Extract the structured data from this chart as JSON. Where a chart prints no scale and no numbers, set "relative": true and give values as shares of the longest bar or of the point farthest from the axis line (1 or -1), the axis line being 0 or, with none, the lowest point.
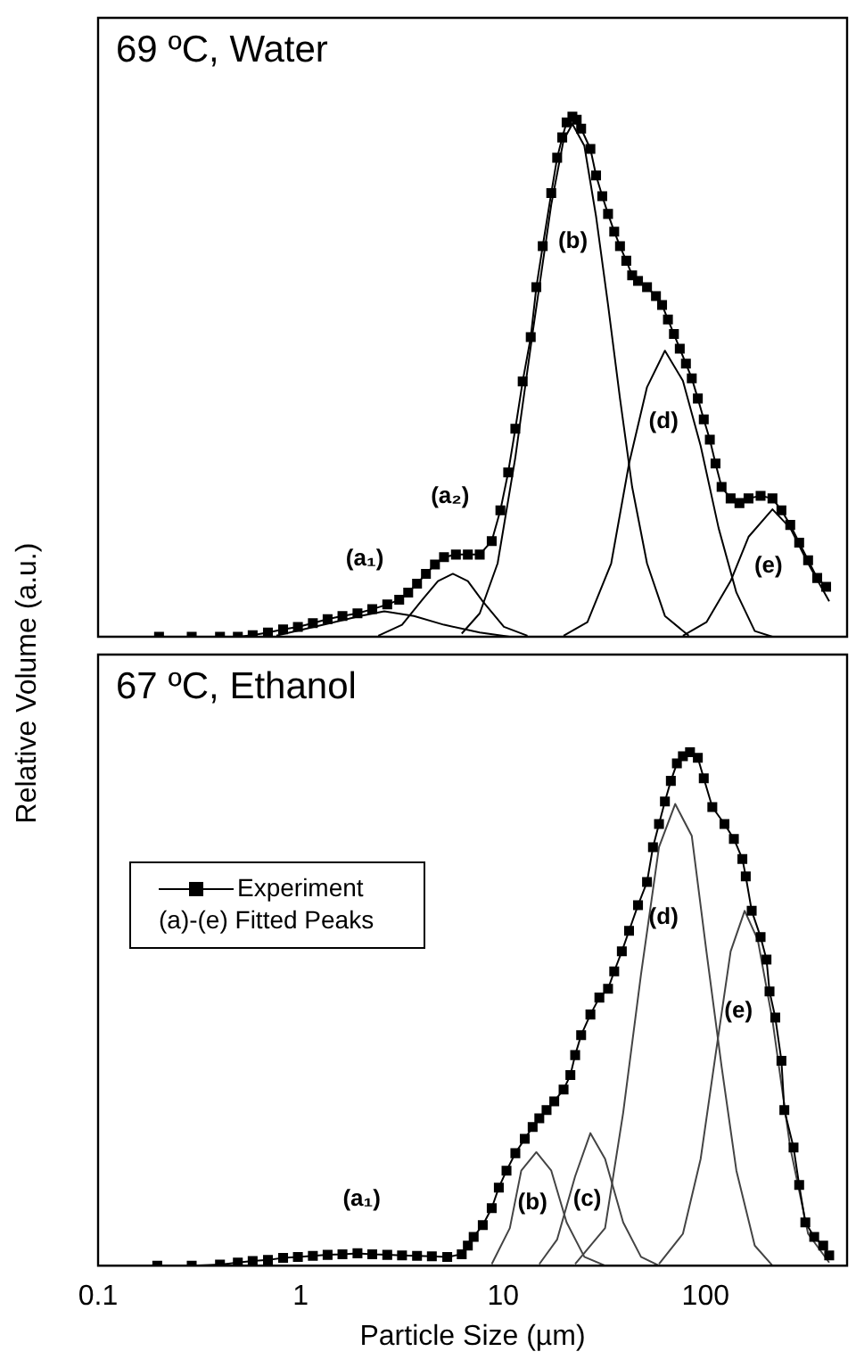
{
  "chart_data": [
    {
      "type": "line",
      "title": "69 ºC, Water",
      "ylabel": "Relative Volume (a.u.)",
      "relative": true,
      "log": "x",
      "xlim": [
        0.1,
        500
      ],
      "xticks": [
        0.1,
        1,
        10,
        100
      ],
      "tick_labels": false,
      "grid": false,
      "legend": false,
      "series": [
        {
          "color": "#000000",
          "marker": "square",
          "x": [
            0.2,
            0.29,
            0.4,
            0.49,
            0.58,
            0.69,
            0.82,
            0.97,
            1.15,
            1.36,
            1.61,
            1.91,
            2.26,
            2.68,
            3.07,
            3.4,
            3.76,
            4.16,
            4.61,
            5.11,
            5.85,
            6.7,
            7.67,
            8.79,
            9.7,
            10.6,
            11.5,
            12.5,
            13.7,
            14.6,
            15.7,
            17.3,
            18.5,
            19.6,
            20.6,
            22,
            23.1,
            24.3,
            27,
            28.8,
            30.9,
            33,
            35.4,
            37.8,
            40.6,
            43.4,
            46.4,
            51.4,
            56.9,
            61,
            65.2,
            69.8,
            74.6,
            80,
            85.5,
            91.6,
            98,
            105,
            112,
            120,
            133,
            147,
            163,
            187,
            214,
            237,
            262,
            290,
            321,
            356,
            394
          ],
          "values": [
            0,
            0,
            0,
            0,
            0.003,
            0.008,
            0.014,
            0.019,
            0.026,
            0.034,
            0.04,
            0.045,
            0.053,
            0.062,
            0.071,
            0.085,
            0.102,
            0.121,
            0.139,
            0.153,
            0.158,
            0.158,
            0.158,
            0.184,
            0.243,
            0.316,
            0.4,
            0.491,
            0.576,
            0.672,
            0.751,
            0.853,
            0.921,
            0.96,
            0.989,
            1,
            0.994,
            0.977,
            0.938,
            0.887,
            0.847,
            0.813,
            0.779,
            0.751,
            0.723,
            0.695,
            0.684,
            0.672,
            0.655,
            0.638,
            0.61,
            0.582,
            0.554,
            0.525,
            0.497,
            0.458,
            0.418,
            0.379,
            0.333,
            0.288,
            0.266,
            0.257,
            0.266,
            0.271,
            0.266,
            0.243,
            0.215,
            0.181,
            0.147,
            0.113,
            0.096
          ]
        },
        {
          "color": "#000000",
          "marker": "none",
          "x": [
            0.76,
            1.4,
            1.97,
            2.59,
            3.63,
            5.11,
            7.67,
            10.8
          ],
          "values": [
            0.002,
            0.026,
            0.04,
            0.049,
            0.04,
            0.023,
            0.008,
            0
          ]
        },
        {
          "color": "#000000",
          "marker": "none",
          "x": [
            2.42,
            3.17,
            4.03,
            4.77,
            5.65,
            6.7,
            7.94,
            10.1,
            13.2
          ],
          "values": [
            0.002,
            0.023,
            0.073,
            0.107,
            0.121,
            0.107,
            0.068,
            0.019,
            0.002
          ]
        },
        {
          "color": "#000000",
          "marker": "none",
          "x": [
            6.25,
            7.67,
            9.4,
            11.5,
            14.1,
            17.3,
            19.9,
            22,
            25.2,
            28.8,
            33,
            37.8,
            43.4,
            51.4,
            63,
            82.6
          ],
          "values": [
            0.006,
            0.045,
            0.141,
            0.345,
            0.593,
            0.831,
            0.955,
            0.986,
            0.944,
            0.808,
            0.638,
            0.458,
            0.288,
            0.141,
            0.04,
            0.002
          ]
        },
        {
          "color": "#000000",
          "marker": "none",
          "x": [
            19.9,
            26.1,
            34.2,
            41.9,
            51.4,
            63,
            77.3,
            94.6,
            116,
            142,
            175,
            214
          ],
          "values": [
            0.002,
            0.028,
            0.141,
            0.333,
            0.48,
            0.55,
            0.492,
            0.367,
            0.209,
            0.085,
            0.011,
            0
          ]
        },
        {
          "color": "#000000",
          "marker": "none",
          "x": [
            77.3,
            101,
            133,
            163,
            214,
            262,
            321,
            408
          ],
          "values": [
            0.002,
            0.028,
            0.107,
            0.192,
            0.245,
            0.209,
            0.141,
            0.068
          ]
        }
      ],
      "annotations": [
        "(a₁)",
        "(a₂)",
        "(b)",
        "(d)",
        "(e)"
      ]
    },
    {
      "type": "line",
      "title": "67 ºC, Ethanol",
      "xlabel": "Particle Size (µm)",
      "relative": true,
      "log": "x",
      "xlim": [
        0.1,
        500
      ],
      "xticks": [
        0.1,
        1,
        10,
        100
      ],
      "tick_labels": "x",
      "grid": false,
      "legend": "top left",
      "series": [
        {
          "name": "Experiment",
          "color": "#000000",
          "marker": "square",
          "x": [
            0.196,
            0.29,
            0.4,
            0.49,
            0.58,
            0.69,
            0.82,
            0.97,
            1.15,
            1.36,
            1.61,
            1.91,
            2.26,
            2.68,
            3.17,
            3.76,
            4.45,
            5.3,
            6.25,
            6.7,
            7.16,
            7.94,
            8.79,
            9.53,
            10.4,
            11.5,
            12.8,
            14,
            15.1,
            16.4,
            17.9,
            19.9,
            21.5,
            22.7,
            24.3,
            27,
            29.9,
            33,
            35.4,
            38.6,
            41.9,
            46.4,
            51.4,
            55,
            58.9,
            63,
            67.4,
            72.2,
            77.3,
            83.8,
            91.6,
            98,
            108,
            124,
            138,
            152,
            158,
            169,
            187,
            200,
            207,
            221,
            237,
            245,
            272,
            290,
            311,
            344,
            381,
            408
          ],
          "values": [
            0,
            0,
            0.002,
            0.006,
            0.009,
            0.011,
            0.015,
            0.017,
            0.019,
            0.021,
            0.022,
            0.024,
            0.022,
            0.021,
            0.02,
            0.019,
            0.018,
            0.017,
            0.022,
            0.039,
            0.056,
            0.079,
            0.112,
            0.152,
            0.185,
            0.219,
            0.247,
            0.27,
            0.287,
            0.303,
            0.32,
            0.343,
            0.371,
            0.41,
            0.449,
            0.489,
            0.522,
            0.539,
            0.573,
            0.612,
            0.652,
            0.702,
            0.747,
            0.815,
            0.86,
            0.904,
            0.944,
            0.978,
            0.992,
            1,
            0.989,
            0.949,
            0.893,
            0.86,
            0.831,
            0.792,
            0.758,
            0.691,
            0.64,
            0.596,
            0.534,
            0.483,
            0.399,
            0.303,
            0.23,
            0.157,
            0.084,
            0.056,
            0.039,
            0.02
          ]
        },
        {
          "color": "#444444",
          "marker": "none",
          "x": [
            8.79,
            10.8,
            12.3,
            14.6,
            17.3,
            20.6,
            25.2,
            31.9
          ],
          "values": [
            0.003,
            0.073,
            0.185,
            0.221,
            0.185,
            0.084,
            0.017,
            0
          ]
        },
        {
          "color": "#444444",
          "marker": "none",
          "x": [
            15.1,
            18.5,
            22.7,
            27,
            31.9,
            39.2,
            48,
            58.9
          ],
          "values": [
            0.003,
            0.051,
            0.174,
            0.258,
            0.208,
            0.084,
            0.017,
            0
          ]
        },
        {
          "color": "#444444",
          "marker": "none",
          "x": [
            22.7,
            31.9,
            39.2,
            48,
            58.9,
            70.8,
            85.5,
            101,
            120,
            142,
            175,
            214
          ],
          "values": [
            0.003,
            0.073,
            0.298,
            0.567,
            0.815,
            0.899,
            0.837,
            0.612,
            0.388,
            0.185,
            0.039,
            0
          ]
        },
        {
          "color": "#444444",
          "marker": "none",
          "x": [
            58.9,
            77.3,
            94.6,
            112,
            133,
            156,
            181,
            214,
            262,
            321,
            408
          ],
          "values": [
            0.003,
            0.062,
            0.208,
            0.41,
            0.612,
            0.691,
            0.635,
            0.478,
            0.23,
            0.062,
            0.006
          ]
        }
      ],
      "annotations": [
        "(a)-(e) Fitted Peaks",
        "(a₁)",
        "(b)",
        "(c)",
        "(d)",
        "(e)"
      ]
    }
  ]
}
